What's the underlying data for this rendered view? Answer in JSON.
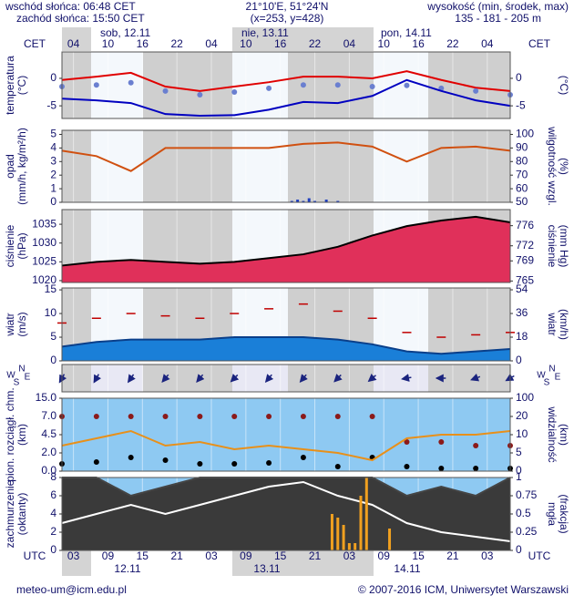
{
  "header": {
    "sunrise": "wschód słońca: 06:48 CET",
    "sunset": "zachód słońca: 15:50 CET",
    "coords": "21°10'E, 51°24'N",
    "grid": "(x=253, y=428)",
    "height_title": "wysokość (min, środek, max)",
    "heights": "135 - 181 - 205 m"
  },
  "time_axis": {
    "zone_top": "CET",
    "zone_bottom": "UTC",
    "xlim": [
      0,
      78
    ],
    "cet_ticks": [
      {
        "value": 2,
        "label": "04"
      },
      {
        "value": 8,
        "label": "10"
      },
      {
        "value": 14,
        "label": "16"
      },
      {
        "value": 20,
        "label": "22"
      },
      {
        "value": 26,
        "label": "04"
      },
      {
        "value": 32,
        "label": "10"
      },
      {
        "value": 38,
        "label": "16"
      },
      {
        "value": 44,
        "label": "22"
      },
      {
        "value": 50,
        "label": "04"
      },
      {
        "value": 56,
        "label": "10"
      },
      {
        "value": 62,
        "label": "16"
      },
      {
        "value": 68,
        "label": "22"
      },
      {
        "value": 74,
        "label": "04"
      }
    ],
    "utc_ticks": [
      {
        "value": 2,
        "label": "03"
      },
      {
        "value": 8,
        "label": "09"
      },
      {
        "value": 14,
        "label": "15"
      },
      {
        "value": 20,
        "label": "21"
      },
      {
        "value": 26,
        "label": "03"
      },
      {
        "value": 32,
        "label": "09"
      },
      {
        "value": 38,
        "label": "15"
      },
      {
        "value": 44,
        "label": "21"
      },
      {
        "value": 50,
        "label": "03"
      },
      {
        "value": 56,
        "label": "09"
      },
      {
        "value": 62,
        "label": "15"
      },
      {
        "value": 68,
        "label": "21"
      },
      {
        "value": 74,
        "label": "03"
      }
    ],
    "days": [
      "sob, 12.11",
      "nie, 13.11",
      "pon, 14.11"
    ],
    "utc_dates": [
      "12.11",
      "13.11",
      "14.11"
    ]
  },
  "chart_data": [
    {
      "type": "line",
      "ylabel": [
        "temperatura",
        "(°C)"
      ],
      "y2label": [
        "(°C)"
      ],
      "ylim": [
        -7.3,
        4.8
      ],
      "yticks": [
        -5,
        0
      ],
      "y2lim": [
        -7.3,
        4.8
      ],
      "y2ticks": [
        -5,
        0
      ],
      "x": [
        0,
        6,
        12,
        18,
        24,
        30,
        36,
        42,
        48,
        54,
        60,
        66,
        72,
        78
      ],
      "series": [
        {
          "color": "#e00000",
          "values": [
            -0.3,
            0.3,
            1.0,
            -1.5,
            -2.3,
            -1.5,
            -0.7,
            0.3,
            0.3,
            0,
            1.3,
            -0.3,
            -1.7,
            -2.3
          ]
        },
        {
          "color": "#6a7fd0",
          "kind": "dots",
          "values": [
            -1.5,
            -1.2,
            -0.8,
            -2.3,
            -3,
            -2.5,
            -1.8,
            -1.2,
            -1.2,
            -1.5,
            -1.3,
            -1.8,
            -2.3,
            -3
          ]
        },
        {
          "color": "#0000c0",
          "values": [
            -3.7,
            -4,
            -4.5,
            -6.5,
            -6.8,
            -6.7,
            -5.7,
            -4.3,
            -4.5,
            -3.2,
            -0.3,
            -2.3,
            -4,
            -5
          ]
        }
      ]
    },
    {
      "type": "line",
      "ylabel": [
        "opad",
        "(mm/h, kg/m²/h)"
      ],
      "y2label": [
        "(%)",
        "wilgotność wzgl."
      ],
      "ylim": [
        0,
        5.3
      ],
      "yticks": [
        0,
        1,
        2,
        3,
        4,
        5
      ],
      "y2lim": [
        50,
        103
      ],
      "y2ticks": [
        50,
        60,
        70,
        80,
        90,
        100
      ],
      "x": [
        0,
        6,
        12,
        18,
        24,
        30,
        36,
        42,
        48,
        54,
        60,
        66,
        72,
        78
      ],
      "series": [
        {
          "color": "#2040c0",
          "kind": "bars",
          "x": [
            40,
            41,
            42,
            43,
            44,
            46,
            48
          ],
          "values": [
            0.1,
            0.2,
            0.1,
            0.3,
            0.1,
            0.2,
            0.1
          ]
        },
        {
          "color": "#d05010",
          "axis": "y2",
          "values": [
            88,
            84,
            73,
            90,
            90,
            90,
            90,
            93,
            94,
            91,
            80,
            90,
            91,
            88
          ]
        }
      ]
    },
    {
      "type": "line",
      "ylabel": [
        "ciśnienie",
        "(hPa)"
      ],
      "y2label": [
        "(mm Hg)",
        "ciśnienie"
      ],
      "ylim": [
        1019.5,
        1038.9
      ],
      "yticks": [
        1020,
        1025,
        1030,
        1035
      ],
      "y2lim": [
        764.7,
        779.2
      ],
      "y2ticks": [
        765,
        769,
        772,
        776
      ],
      "x": [
        0,
        6,
        12,
        18,
        24,
        30,
        36,
        42,
        48,
        54,
        60,
        66,
        72,
        78
      ],
      "series": [
        {
          "color": "#000000",
          "kind": "area",
          "fill": "#e0305a",
          "values": [
            1024,
            1025,
            1025.5,
            1025,
            1024.5,
            1025,
            1026,
            1027,
            1029,
            1032,
            1034.5,
            1036,
            1037,
            1035.5
          ]
        }
      ]
    },
    {
      "type": "line",
      "ylabel": [
        "wiatr",
        "(m/s)"
      ],
      "y2label": [
        "(km/h)",
        "wiatr"
      ],
      "ylim": [
        0,
        15.4
      ],
      "yticks": [
        0,
        5,
        10,
        15
      ],
      "y2lim": [
        0,
        55.4
      ],
      "y2ticks": [
        0,
        18,
        36,
        54
      ],
      "x": [
        0,
        6,
        12,
        18,
        24,
        30,
        36,
        42,
        48,
        54,
        60,
        66,
        72,
        78
      ],
      "series": [
        {
          "color": "#0a3f8a",
          "kind": "area",
          "fill": "#1a7fd8",
          "values": [
            3,
            4,
            4.5,
            4.5,
            4.5,
            5,
            5,
            5,
            4.5,
            3.5,
            2,
            1.5,
            2,
            2.5
          ]
        },
        {
          "color": "#c00000",
          "kind": "dashes",
          "values": [
            8,
            9,
            10,
            9.5,
            9,
            10,
            11,
            12,
            10.5,
            9,
            6,
            5,
            5.5,
            6
          ]
        }
      ]
    },
    {
      "type": "arrows",
      "compass": [
        "W",
        "S",
        "N",
        "E"
      ],
      "x": [
        0,
        6,
        12,
        18,
        24,
        30,
        36,
        42,
        48,
        54,
        60,
        66,
        72,
        78
      ],
      "series": [
        {
          "color": "#1a237e",
          "values": [
            30,
            30,
            35,
            40,
            40,
            45,
            40,
            40,
            45,
            50,
            80,
            90,
            70,
            60
          ]
        }
      ]
    },
    {
      "type": "line",
      "ylabel": [
        "pion. rozciągł. chm.",
        "(km)"
      ],
      "y2label": [
        "(km)",
        "widzialność"
      ],
      "piecewise": true,
      "ylim": [
        0,
        15
      ],
      "yticks": [
        {
          "value": 0,
          "label": "0.0"
        },
        {
          "value": 2,
          "label": "2.0"
        },
        {
          "value": 4.5,
          "label": "4.5"
        },
        {
          "value": 7,
          "label": "7.0"
        },
        {
          "value": 15,
          "label": "15.0"
        }
      ],
      "y2lim": [
        0,
        100
      ],
      "y2ticks": [
        0,
        5,
        10,
        20,
        100
      ],
      "x": [
        0,
        6,
        12,
        18,
        24,
        30,
        36,
        42,
        48,
        54,
        60,
        66,
        72,
        78
      ],
      "series": [
        {
          "color": "#8b1a1a",
          "kind": "dots",
          "values": [
            7,
            7,
            7,
            7,
            7,
            7,
            7,
            7,
            7,
            7,
            3.5,
            3.5,
            3,
            3
          ]
        },
        {
          "color": "#000000",
          "kind": "dots",
          "values": [
            0.8,
            1,
            1.5,
            1.2,
            0.8,
            0.8,
            0.9,
            1.5,
            0.5,
            1.5,
            0.5,
            0.3,
            0.3,
            0.3
          ]
        },
        {
          "color": "#e8901a",
          "axis": "y2",
          "values": [
            7,
            9,
            12,
            7,
            8,
            6,
            7,
            6,
            5,
            3,
            9,
            10,
            10,
            12
          ]
        }
      ]
    },
    {
      "type": "line",
      "ylabel": [
        "zachmurzenie",
        "(oktanty)"
      ],
      "y2label": [
        "(frakcja)",
        "mgła"
      ],
      "ylim": [
        0,
        8
      ],
      "yticks": [
        0,
        2,
        4,
        6,
        8
      ],
      "y2lim": [
        0,
        1
      ],
      "y2ticks": [
        0,
        0.25,
        0.5,
        0.75,
        1
      ],
      "x": [
        0,
        6,
        12,
        18,
        24,
        30,
        36,
        42,
        48,
        54,
        60,
        66,
        72,
        78
      ],
      "series": [
        {
          "color": "#444444",
          "kind": "area",
          "fill": "#3a3a3a",
          "values": [
            8,
            8,
            6,
            7,
            8,
            8,
            8,
            8,
            8,
            8,
            6,
            7,
            6,
            8
          ]
        },
        {
          "color": "#ffffff",
          "values": [
            3,
            4,
            5,
            4,
            5,
            6,
            7,
            7.5,
            6,
            5,
            3,
            2,
            1.5,
            1
          ]
        },
        {
          "color": "#f0a020",
          "kind": "bars",
          "axis": "y2",
          "x": [
            47,
            48,
            49,
            50,
            51,
            52,
            53,
            57
          ],
          "values": [
            0.5,
            0.45,
            0.35,
            0.1,
            0.1,
            0.75,
            1,
            0.3
          ]
        }
      ]
    }
  ],
  "footer": {
    "email": "meteo-um@icm.edu.pl",
    "copyright": "© 2007-2016 ICM, Uniwersytet Warszawski"
  }
}
